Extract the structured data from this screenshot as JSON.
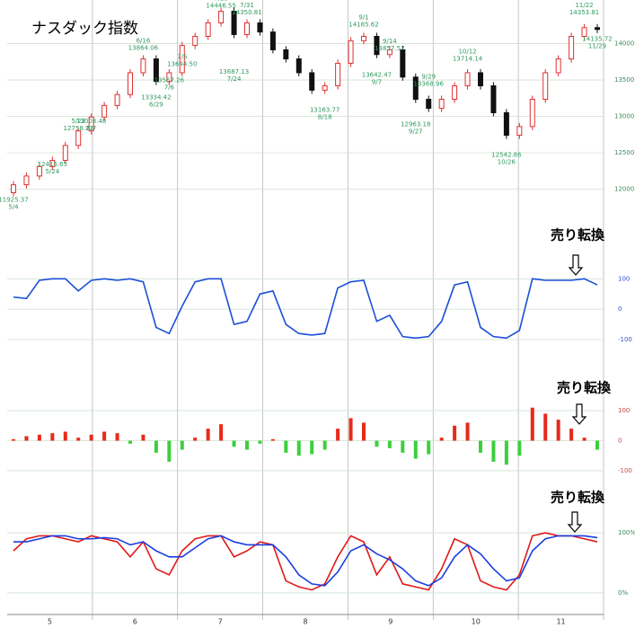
{
  "chart_data": [
    {
      "type": "candlestick",
      "title": "ナスダック指数",
      "ylim": [
        11450,
        14600
      ],
      "yticks": [
        12000,
        12500,
        13000,
        13500,
        14000
      ],
      "grid": true,
      "up_color": "#e03030",
      "down_color": "#111111",
      "open": [
        11950,
        12060,
        12180,
        12310,
        12395,
        12600,
        12800,
        12990,
        13150,
        13300,
        13600,
        13790,
        13480,
        13600,
        13975,
        14100,
        14285,
        14445,
        14125,
        14285,
        14160,
        13915,
        13790,
        13600,
        13360,
        13420,
        13730,
        14040,
        14100,
        13850,
        13915,
        13540,
        13235,
        13110,
        13235,
        13420,
        13600,
        13420,
        13050,
        12740,
        12860,
        13235,
        13600,
        13790,
        14100,
        14220
      ],
      "high": [
        12110,
        12230,
        12360,
        12445,
        12650,
        12850,
        13040,
        13200,
        13350,
        13650,
        13840,
        13840,
        13650,
        14025,
        14150,
        14335,
        14495,
        14495,
        14335,
        14335,
        14210,
        13965,
        13840,
        13650,
        13470,
        13780,
        14090,
        14150,
        14150,
        13965,
        13965,
        13590,
        13285,
        13285,
        13470,
        13650,
        13650,
        13470,
        13100,
        12910,
        13285,
        13650,
        13840,
        14150,
        14270,
        14270
      ],
      "low": [
        11900,
        12010,
        12130,
        12260,
        12345,
        12550,
        12750,
        12940,
        13100,
        13250,
        13550,
        13430,
        13430,
        13550,
        13925,
        14050,
        14235,
        14075,
        14075,
        14110,
        13865,
        13740,
        13550,
        13310,
        13310,
        13370,
        13680,
        13990,
        13800,
        13800,
        13490,
        13185,
        13060,
        13060,
        13185,
        13370,
        13370,
        13000,
        12690,
        12690,
        12810,
        13185,
        13550,
        13740,
        14050,
        14145
      ],
      "close": [
        12060,
        12180,
        12310,
        12395,
        12600,
        12800,
        12990,
        13150,
        13300,
        13600,
        13790,
        13480,
        13600,
        13975,
        14100,
        14285,
        14445,
        14125,
        14285,
        14160,
        13915,
        13790,
        13600,
        13360,
        13420,
        13730,
        14040,
        14100,
        13850,
        13915,
        13540,
        13235,
        13110,
        13235,
        13420,
        13600,
        13420,
        13050,
        12740,
        12860,
        13235,
        13600,
        13790,
        14100,
        14220,
        14195
      ],
      "high_labels": [
        null,
        null,
        null,
        null,
        null,
        {
          "date": "5/22",
          "value": 12758.23
        },
        null,
        null,
        null,
        null,
        {
          "date": "6/16",
          "value": 13864.06
        },
        null,
        null,
        {
          "date": "7/5",
          "value": 13644.5,
          "label": "13644.50"
        },
        null,
        null,
        {
          "date": "7/23",
          "value": 14446.55
        },
        null,
        {
          "date": "7/31",
          "value": 14350.81
        },
        null,
        null,
        null,
        null,
        null,
        null,
        null,
        null,
        {
          "date": "9/1",
          "value": 14185.62
        },
        null,
        {
          "date": "9/14",
          "value": 13857.57
        },
        null,
        null,
        {
          "date": "9/29",
          "value": 13368.96
        },
        null,
        null,
        {
          "date": "10/12",
          "value": 13714.14
        },
        null,
        null,
        null,
        null,
        null,
        null,
        null,
        null,
        {
          "date": "11/22",
          "value": 14353.81
        },
        null
      ],
      "low_labels": [
        {
          "date": "5/4",
          "value": 11925.37
        },
        null,
        null,
        {
          "date": "5/24",
          "value": 12415.65
        },
        null,
        null,
        {
          "date": "6/7",
          "value": 13008.48
        },
        null,
        null,
        null,
        null,
        {
          "date": "6/29",
          "value": 13334.42
        },
        {
          "date": "7/6",
          "value": 13567.26
        },
        null,
        null,
        null,
        null,
        {
          "date": "7/24",
          "value": 13687.13
        },
        null,
        null,
        null,
        null,
        null,
        null,
        {
          "date": "8/18",
          "value": 13163.77
        },
        null,
        null,
        null,
        {
          "date": "9/7",
          "value": 13642.47
        },
        null,
        null,
        {
          "date": "9/27",
          "value": 12963.18
        },
        null,
        null,
        null,
        null,
        null,
        null,
        {
          "date": "10/26",
          "value": 12542.86
        },
        null,
        null,
        null,
        null,
        null,
        null,
        {
          "date": "11/29",
          "value": 14135.72
        }
      ]
    },
    {
      "type": "line",
      "annotation": "売り転換",
      "ylim": [
        -165,
        160
      ],
      "yticks": [
        100,
        0,
        -100
      ],
      "grid": true,
      "series": [
        {
          "color": "#1a4fd6",
          "values": [
            40,
            35,
            95,
            100,
            100,
            60,
            95,
            100,
            95,
            100,
            90,
            -60,
            -80,
            10,
            90,
            100,
            100,
            -50,
            -40,
            50,
            60,
            -50,
            -80,
            -85,
            -80,
            70,
            90,
            95,
            -40,
            -20,
            -90,
            -95,
            -90,
            -40,
            80,
            90,
            -60,
            -90,
            -95,
            -70,
            100,
            95,
            95,
            95,
            100,
            80
          ]
        }
      ]
    },
    {
      "type": "bar",
      "annotation": "売り転換",
      "ylim": [
        -163,
        181
      ],
      "yticks": [
        100,
        0,
        -100
      ],
      "grid": true,
      "up_color": "#e82a1a",
      "down_color": "#3ccf3c",
      "values": [
        5,
        15,
        20,
        25,
        30,
        10,
        20,
        30,
        25,
        -10,
        20,
        -40,
        -70,
        -30,
        10,
        40,
        55,
        -20,
        -30,
        -10,
        5,
        -40,
        -50,
        -45,
        -30,
        40,
        75,
        60,
        -20,
        -25,
        -40,
        -60,
        -45,
        10,
        50,
        60,
        -40,
        -70,
        -80,
        -50,
        110,
        90,
        70,
        40,
        10,
        -30
      ]
    },
    {
      "type": "line",
      "annotation": "売り転換",
      "ylim": [
        -30,
        127
      ],
      "yticks": [
        {
          "value": 100,
          "label": "100%"
        },
        {
          "value": 0,
          "label": "0%"
        }
      ],
      "grid": true,
      "series": [
        {
          "color": "#e01818",
          "values": [
            70,
            90,
            95,
            95,
            90,
            85,
            95,
            90,
            85,
            60,
            85,
            40,
            30,
            70,
            90,
            95,
            95,
            60,
            70,
            85,
            80,
            20,
            10,
            5,
            15,
            60,
            95,
            85,
            30,
            60,
            15,
            10,
            5,
            40,
            90,
            80,
            20,
            10,
            5,
            30,
            95,
            100,
            95,
            95,
            90,
            85
          ]
        },
        {
          "color": "#1a3fe0",
          "values": [
            85,
            85,
            90,
            95,
            95,
            90,
            90,
            92,
            90,
            80,
            85,
            70,
            60,
            60,
            75,
            90,
            95,
            85,
            80,
            80,
            80,
            60,
            30,
            15,
            12,
            35,
            70,
            80,
            65,
            55,
            40,
            20,
            12,
            25,
            60,
            80,
            65,
            40,
            20,
            25,
            70,
            90,
            95,
            95,
            95,
            92
          ]
        }
      ]
    }
  ],
  "x_axis_labels": [
    "5",
    "6",
    "7",
    "8",
    "9",
    "10",
    "11"
  ]
}
